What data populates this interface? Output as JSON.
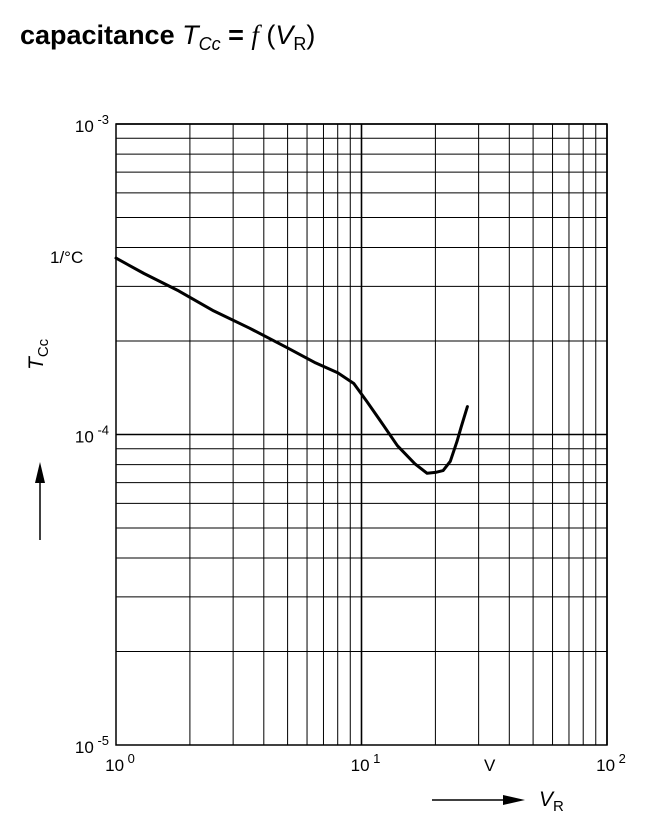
{
  "title": {
    "prefix": "capacitance ",
    "lhs_symbol": "T",
    "lhs_sub": "Cc",
    "eq": " = ",
    "func": "f",
    "open": " (",
    "arg_symbol": "V",
    "arg_sub": "R",
    "close": ")"
  },
  "chart_data": {
    "type": "line",
    "x_scale": "log",
    "y_scale": "log",
    "xlim": [
      1,
      100
    ],
    "ylim": [
      1e-05,
      0.001
    ],
    "grid": true,
    "xlabel": {
      "symbol": "V",
      "sub": "R"
    },
    "ylabel": {
      "symbol": "T",
      "sub": "Cc"
    },
    "x_unit": "V",
    "y_unit": "1/°C",
    "x_ticks": [
      {
        "value": 1,
        "base": "10",
        "exp": "0"
      },
      {
        "value": 10,
        "base": "10",
        "exp": "1"
      },
      {
        "value": 100,
        "base": "10",
        "exp": "2"
      }
    ],
    "y_ticks": [
      {
        "value": 1e-05,
        "base": "10",
        "exp": "-5"
      },
      {
        "value": 0.0001,
        "base": "10",
        "exp": "-4"
      },
      {
        "value": 0.001,
        "base": "10",
        "exp": "-3"
      }
    ],
    "series": [
      {
        "x": [
          1.0,
          1.3,
          1.8,
          2.5,
          3.5,
          5.0,
          6.5,
          8.0,
          9.3,
          10.5,
          12.0,
          14.0,
          16.5,
          18.5,
          20.0,
          21.5,
          23.0,
          24.5,
          25.5,
          27.0
        ],
        "y": [
          0.00037,
          0.00033,
          0.00029,
          0.00025,
          0.00022,
          0.00019,
          0.00017,
          0.000158,
          0.000146,
          0.000128,
          0.00011,
          9.2e-05,
          8.05e-05,
          7.5e-05,
          7.55e-05,
          7.65e-05,
          8.2e-05,
          9.5e-05,
          0.000106,
          0.000123
        ]
      }
    ]
  }
}
